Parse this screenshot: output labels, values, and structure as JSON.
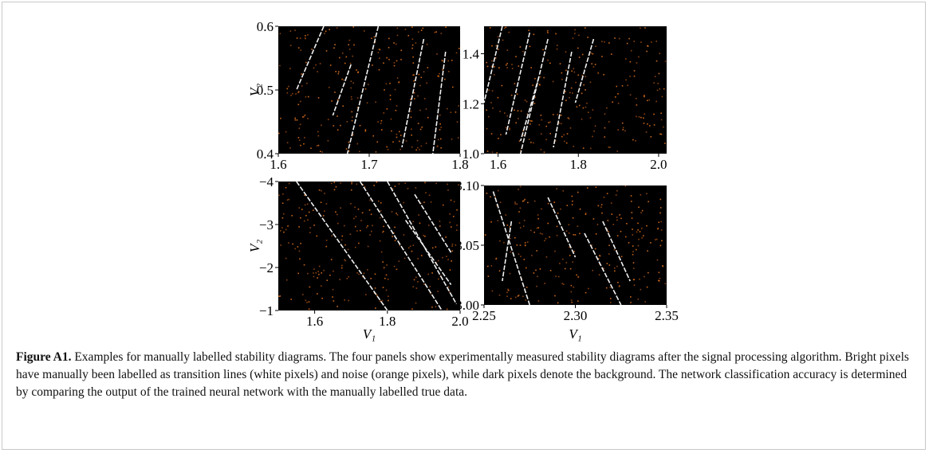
{
  "figure": {
    "panels": [
      {
        "xlim": [
          1.6,
          1.8
        ],
        "xticks": [
          1.6,
          1.7,
          1.8
        ],
        "ylim": [
          0.4,
          0.6
        ],
        "yticks": [
          0.4,
          0.5,
          0.6
        ],
        "ylabel": "V₂"
      },
      {
        "xlim": [
          1.565,
          2.02
        ],
        "xticks": [
          1.6,
          1.8,
          {
            "value": 2,
            "label": "2.0"
          }
        ],
        "ylim": [
          1,
          1.51
        ],
        "yticks": [
          {
            "value": 1,
            "label": "1.0"
          },
          1.2,
          1.4
        ]
      },
      {
        "xlim": [
          1.5,
          2
        ],
        "xticks": [
          1.6,
          1.8,
          {
            "value": 2,
            "label": "2.0"
          }
        ],
        "ylim": [
          -1,
          -4
        ],
        "yticks": [
          {
            "value": -4,
            "label": "−4"
          },
          {
            "value": -3,
            "label": "−3"
          },
          {
            "value": -2,
            "label": "−2"
          },
          {
            "value": -1,
            "label": "−1"
          }
        ],
        "ylabel": "V₂",
        "xlabel": "V₁"
      },
      {
        "xlim": [
          2.25,
          2.35
        ],
        "xticks": [
          2.25,
          {
            "value": 2.3,
            "label": "2.30"
          },
          2.35
        ],
        "ylim": [
          3,
          3.1
        ],
        "yticks": [
          {
            "value": 3,
            "label": "3.00"
          },
          3.05,
          {
            "value": 3.1,
            "label": "3.10"
          }
        ],
        "xlabel": "V₁"
      }
    ],
    "caption": {
      "label": "Figure A1.",
      "text": " Examples for manually labelled stability diagrams. The four panels show experimentally measured stability diagrams after the signal processing algorithm. Bright pixels have manually been labelled as transition lines (white pixels) and noise (orange pixels), while dark pixels denote the background. The network classification accuracy is determined by comparing the output of the trained neural network with the manually labelled true data."
    }
  }
}
